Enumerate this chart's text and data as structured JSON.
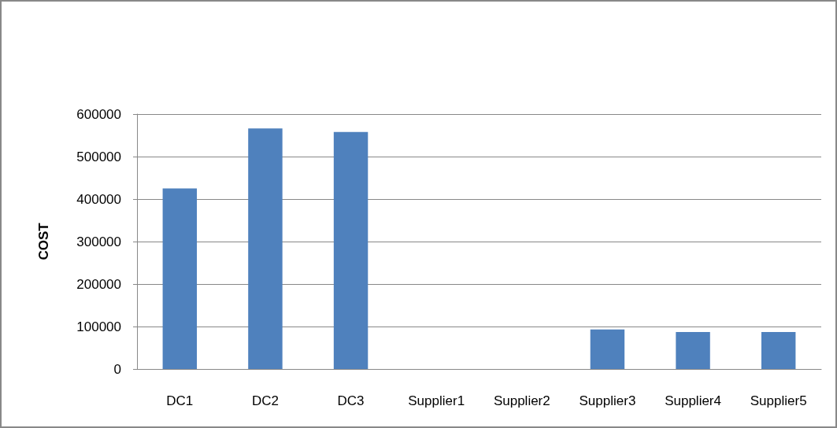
{
  "chart_data": {
    "type": "bar",
    "ylabel": "COST",
    "categories": [
      "DC1",
      "DC2",
      "DC3",
      "Supplier1",
      "Supplier2",
      "Supplier3",
      "Supplier4",
      "Supplier5"
    ],
    "values": [
      425000,
      566000,
      558000,
      0,
      0,
      93000,
      87000,
      87000
    ],
    "color": "#4f81bd",
    "ylim": [
      0,
      600000
    ],
    "yticks": [
      0,
      100000,
      200000,
      300000,
      400000,
      500000,
      600000
    ],
    "grid": "y"
  }
}
